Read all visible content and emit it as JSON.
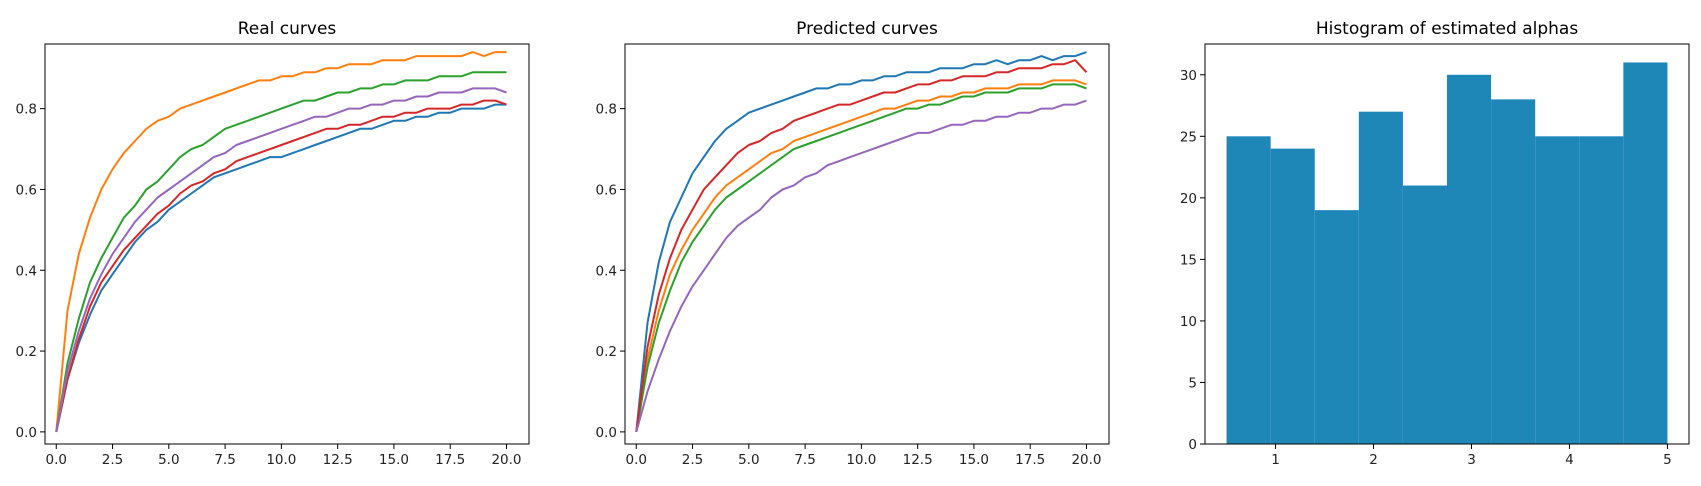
{
  "chart_data": [
    {
      "type": "line",
      "title": "Real curves",
      "xlabel": "",
      "ylabel": "",
      "xlim": [
        -0.5,
        21.0
      ],
      "ylim": [
        -0.03,
        0.96
      ],
      "xticks": [
        0.0,
        2.5,
        5.0,
        7.5,
        10.0,
        12.5,
        15.0,
        17.5,
        20.0
      ],
      "xtick_labels": [
        "0.0",
        "2.5",
        "5.0",
        "7.5",
        "10.0",
        "12.5",
        "15.0",
        "17.5",
        "20.0"
      ],
      "yticks": [
        0.0,
        0.2,
        0.4,
        0.6,
        0.8
      ],
      "ytick_labels": [
        "0.0",
        "0.2",
        "0.4",
        "0.6",
        "0.8"
      ],
      "x": [
        0.0,
        0.5,
        1.0,
        1.5,
        2.0,
        2.5,
        3.0,
        3.5,
        4.0,
        4.5,
        5.0,
        5.5,
        6.0,
        6.5,
        7.0,
        7.5,
        8.0,
        8.5,
        9.0,
        9.5,
        10.0,
        10.5,
        11.0,
        11.5,
        12.0,
        12.5,
        13.0,
        13.5,
        14.0,
        14.5,
        15.0,
        15.5,
        16.0,
        16.5,
        17.0,
        17.5,
        18.0,
        18.5,
        19.0,
        19.5,
        20.0
      ],
      "series": [
        {
          "color": "#1f77b4",
          "values": [
            0.0,
            0.13,
            0.22,
            0.29,
            0.35,
            0.39,
            0.43,
            0.47,
            0.5,
            0.52,
            0.55,
            0.57,
            0.59,
            0.61,
            0.63,
            0.64,
            0.65,
            0.66,
            0.67,
            0.68,
            0.68,
            0.69,
            0.7,
            0.71,
            0.72,
            0.73,
            0.74,
            0.75,
            0.75,
            0.76,
            0.77,
            0.77,
            0.78,
            0.78,
            0.79,
            0.79,
            0.8,
            0.8,
            0.8,
            0.81,
            0.81
          ]
        },
        {
          "color": "#ff7f0e",
          "values": [
            0.0,
            0.3,
            0.44,
            0.53,
            0.6,
            0.65,
            0.69,
            0.72,
            0.75,
            0.77,
            0.78,
            0.8,
            0.81,
            0.82,
            0.83,
            0.84,
            0.85,
            0.86,
            0.87,
            0.87,
            0.88,
            0.88,
            0.89,
            0.89,
            0.9,
            0.9,
            0.91,
            0.91,
            0.91,
            0.92,
            0.92,
            0.92,
            0.93,
            0.93,
            0.93,
            0.93,
            0.93,
            0.94,
            0.93,
            0.94,
            0.94
          ]
        },
        {
          "color": "#2ca02c",
          "values": [
            0.0,
            0.17,
            0.28,
            0.37,
            0.43,
            0.48,
            0.53,
            0.56,
            0.6,
            0.62,
            0.65,
            0.68,
            0.7,
            0.71,
            0.73,
            0.75,
            0.76,
            0.77,
            0.78,
            0.79,
            0.8,
            0.81,
            0.82,
            0.82,
            0.83,
            0.84,
            0.84,
            0.85,
            0.85,
            0.86,
            0.86,
            0.87,
            0.87,
            0.87,
            0.88,
            0.88,
            0.88,
            0.89,
            0.89,
            0.89,
            0.89
          ]
        },
        {
          "color": "#d62728",
          "values": [
            0.0,
            0.13,
            0.23,
            0.31,
            0.37,
            0.41,
            0.45,
            0.48,
            0.51,
            0.54,
            0.56,
            0.59,
            0.61,
            0.62,
            0.64,
            0.65,
            0.67,
            0.68,
            0.69,
            0.7,
            0.71,
            0.72,
            0.73,
            0.74,
            0.75,
            0.75,
            0.76,
            0.76,
            0.77,
            0.78,
            0.78,
            0.79,
            0.79,
            0.8,
            0.8,
            0.8,
            0.81,
            0.81,
            0.82,
            0.82,
            0.81
          ]
        },
        {
          "color": "#9467bd",
          "values": [
            0.0,
            0.15,
            0.25,
            0.33,
            0.39,
            0.44,
            0.48,
            0.52,
            0.55,
            0.58,
            0.6,
            0.62,
            0.64,
            0.66,
            0.68,
            0.69,
            0.71,
            0.72,
            0.73,
            0.74,
            0.75,
            0.76,
            0.77,
            0.78,
            0.78,
            0.79,
            0.8,
            0.8,
            0.81,
            0.81,
            0.82,
            0.82,
            0.83,
            0.83,
            0.84,
            0.84,
            0.84,
            0.85,
            0.85,
            0.85,
            0.84
          ]
        }
      ]
    },
    {
      "type": "line",
      "title": "Predicted curves",
      "xlabel": "",
      "ylabel": "",
      "xlim": [
        -0.5,
        21.0
      ],
      "ylim": [
        -0.03,
        0.96
      ],
      "xticks": [
        0.0,
        2.5,
        5.0,
        7.5,
        10.0,
        12.5,
        15.0,
        17.5,
        20.0
      ],
      "xtick_labels": [
        "0.0",
        "2.5",
        "5.0",
        "7.5",
        "10.0",
        "12.5",
        "15.0",
        "17.5",
        "20.0"
      ],
      "yticks": [
        0.0,
        0.2,
        0.4,
        0.6,
        0.8
      ],
      "ytick_labels": [
        "0.0",
        "0.2",
        "0.4",
        "0.6",
        "0.8"
      ],
      "x": [
        0.0,
        0.5,
        1.0,
        1.5,
        2.0,
        2.5,
        3.0,
        3.5,
        4.0,
        4.5,
        5.0,
        5.5,
        6.0,
        6.5,
        7.0,
        7.5,
        8.0,
        8.5,
        9.0,
        9.5,
        10.0,
        10.5,
        11.0,
        11.5,
        12.0,
        12.5,
        13.0,
        13.5,
        14.0,
        14.5,
        15.0,
        15.5,
        16.0,
        16.5,
        17.0,
        17.5,
        18.0,
        18.5,
        19.0,
        19.5,
        20.0
      ],
      "series": [
        {
          "color": "#1f77b4",
          "values": [
            0.0,
            0.27,
            0.42,
            0.52,
            0.58,
            0.64,
            0.68,
            0.72,
            0.75,
            0.77,
            0.79,
            0.8,
            0.81,
            0.82,
            0.83,
            0.84,
            0.85,
            0.85,
            0.86,
            0.86,
            0.87,
            0.87,
            0.88,
            0.88,
            0.89,
            0.89,
            0.89,
            0.9,
            0.9,
            0.9,
            0.91,
            0.91,
            0.92,
            0.91,
            0.92,
            0.92,
            0.93,
            0.92,
            0.93,
            0.93,
            0.94
          ]
        },
        {
          "color": "#ff7f0e",
          "values": [
            0.0,
            0.18,
            0.3,
            0.39,
            0.45,
            0.5,
            0.54,
            0.58,
            0.61,
            0.63,
            0.65,
            0.67,
            0.69,
            0.7,
            0.72,
            0.73,
            0.74,
            0.75,
            0.76,
            0.77,
            0.78,
            0.79,
            0.8,
            0.8,
            0.81,
            0.82,
            0.82,
            0.83,
            0.83,
            0.84,
            0.84,
            0.85,
            0.85,
            0.85,
            0.86,
            0.86,
            0.86,
            0.87,
            0.87,
            0.87,
            0.86
          ]
        },
        {
          "color": "#2ca02c",
          "values": [
            0.0,
            0.16,
            0.27,
            0.35,
            0.42,
            0.47,
            0.51,
            0.55,
            0.58,
            0.6,
            0.62,
            0.64,
            0.66,
            0.68,
            0.7,
            0.71,
            0.72,
            0.73,
            0.74,
            0.75,
            0.76,
            0.77,
            0.78,
            0.79,
            0.8,
            0.8,
            0.81,
            0.81,
            0.82,
            0.83,
            0.83,
            0.84,
            0.84,
            0.84,
            0.85,
            0.85,
            0.85,
            0.86,
            0.86,
            0.86,
            0.85
          ]
        },
        {
          "color": "#d62728",
          "values": [
            0.0,
            0.21,
            0.34,
            0.43,
            0.5,
            0.55,
            0.6,
            0.63,
            0.66,
            0.69,
            0.71,
            0.72,
            0.74,
            0.75,
            0.77,
            0.78,
            0.79,
            0.8,
            0.81,
            0.81,
            0.82,
            0.83,
            0.84,
            0.84,
            0.85,
            0.86,
            0.86,
            0.87,
            0.87,
            0.88,
            0.88,
            0.88,
            0.89,
            0.89,
            0.9,
            0.9,
            0.9,
            0.91,
            0.91,
            0.92,
            0.89
          ]
        },
        {
          "color": "#9467bd",
          "values": [
            0.0,
            0.1,
            0.18,
            0.25,
            0.31,
            0.36,
            0.4,
            0.44,
            0.48,
            0.51,
            0.53,
            0.55,
            0.58,
            0.6,
            0.61,
            0.63,
            0.64,
            0.66,
            0.67,
            0.68,
            0.69,
            0.7,
            0.71,
            0.72,
            0.73,
            0.74,
            0.74,
            0.75,
            0.76,
            0.76,
            0.77,
            0.77,
            0.78,
            0.78,
            0.79,
            0.79,
            0.8,
            0.8,
            0.81,
            0.81,
            0.82
          ]
        }
      ]
    },
    {
      "type": "bar",
      "title": "Histogram of estimated alphas",
      "xlabel": "",
      "ylabel": "",
      "xlim": [
        0.28,
        5.22
      ],
      "ylim": [
        0,
        32.5
      ],
      "xticks": [
        1,
        2,
        3,
        4,
        5
      ],
      "xtick_labels": [
        "1",
        "2",
        "3",
        "4",
        "5"
      ],
      "yticks": [
        0,
        5,
        10,
        15,
        20,
        25,
        30
      ],
      "ytick_labels": [
        "0",
        "5",
        "10",
        "15",
        "20",
        "25",
        "30"
      ],
      "color": "#1f86b8",
      "bin_edges": [
        0.5,
        0.95,
        1.4,
        1.85,
        2.3,
        2.75,
        3.2,
        3.65,
        4.1,
        4.55,
        5.0
      ],
      "values": [
        25,
        24,
        19,
        27,
        21,
        30,
        28,
        25,
        25,
        31
      ]
    }
  ]
}
